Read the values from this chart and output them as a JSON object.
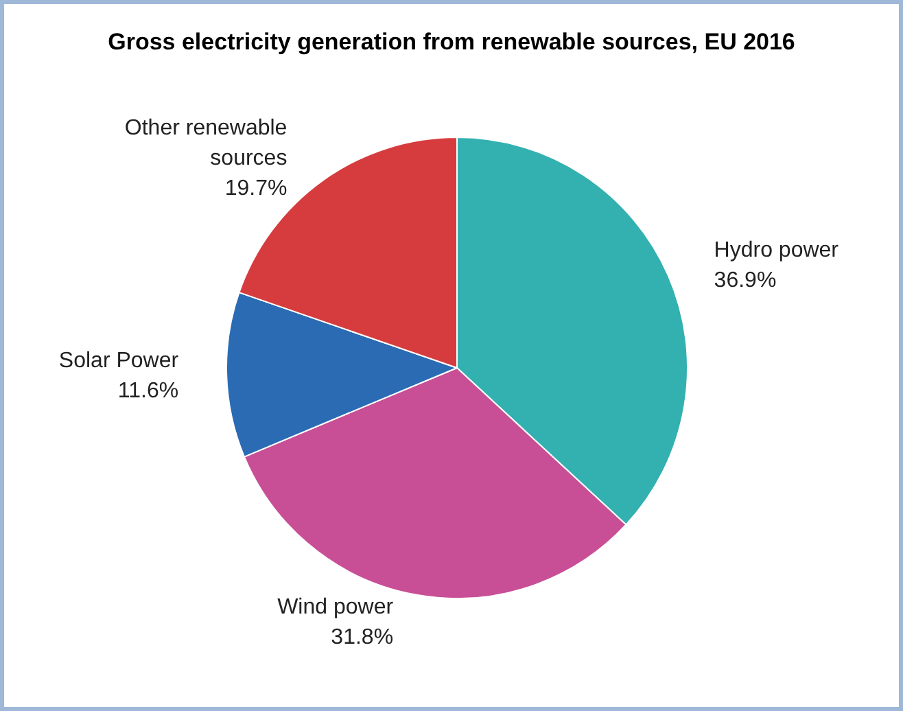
{
  "chart_data": {
    "type": "pie",
    "title": "Gross electricity generation from renewable sources, EU 2016",
    "categories": [
      "Hydro power",
      "Wind power",
      "Solar Power",
      "Other renewable sources"
    ],
    "values": [
      36.9,
      31.8,
      11.6,
      19.7
    ],
    "colors": [
      "#33b0b0",
      "#c84f96",
      "#2a6bb4",
      "#d63c3e"
    ],
    "value_labels": [
      "36.9%",
      "31.8%",
      "11.6%",
      "19.7%"
    ],
    "legend": false
  }
}
